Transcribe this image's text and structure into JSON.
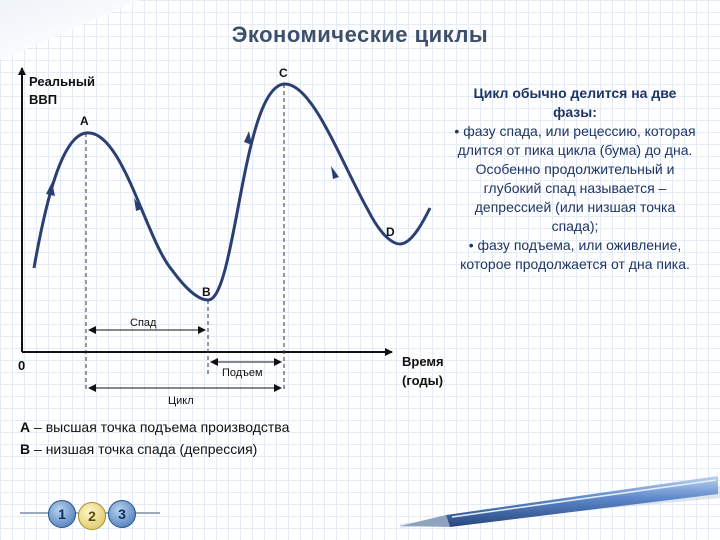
{
  "title": "Экономические циклы",
  "axes": {
    "y_label_line1": "Реальный",
    "y_label_line2": "ВВП",
    "x_label_line1": "Время",
    "x_label_line2": "(годы)",
    "origin": "0"
  },
  "points": {
    "a": "A",
    "b": "B",
    "c": "C",
    "d": "D"
  },
  "intervals": {
    "decline": "Спад",
    "rise": "Подъем",
    "cycle": "Цикл"
  },
  "side_panel": {
    "heading": "Цикл обычно делится на две фазы:",
    "bullet1": "фазу спада, или рецессию, которая длится от пика цикла (бума)  до дна. Особенно продолжительный и глубокий спад называется – депрессией (или низшая точка спада);",
    "bullet2": "фазу подъема, или оживление, которое продолжается от дна пика."
  },
  "legend": {
    "a_key": "А",
    "a_text": "– высшая точка подъема производства",
    "b_key": "В",
    "b_text": "–   низшая точка спада (депрессия)"
  },
  "nav": {
    "item1": "1",
    "item2": "2",
    "item3": "3"
  },
  "colors": {
    "curve": "#2b3f73",
    "title": "#3d4f6b",
    "panel_text": "#1e3563"
  }
}
